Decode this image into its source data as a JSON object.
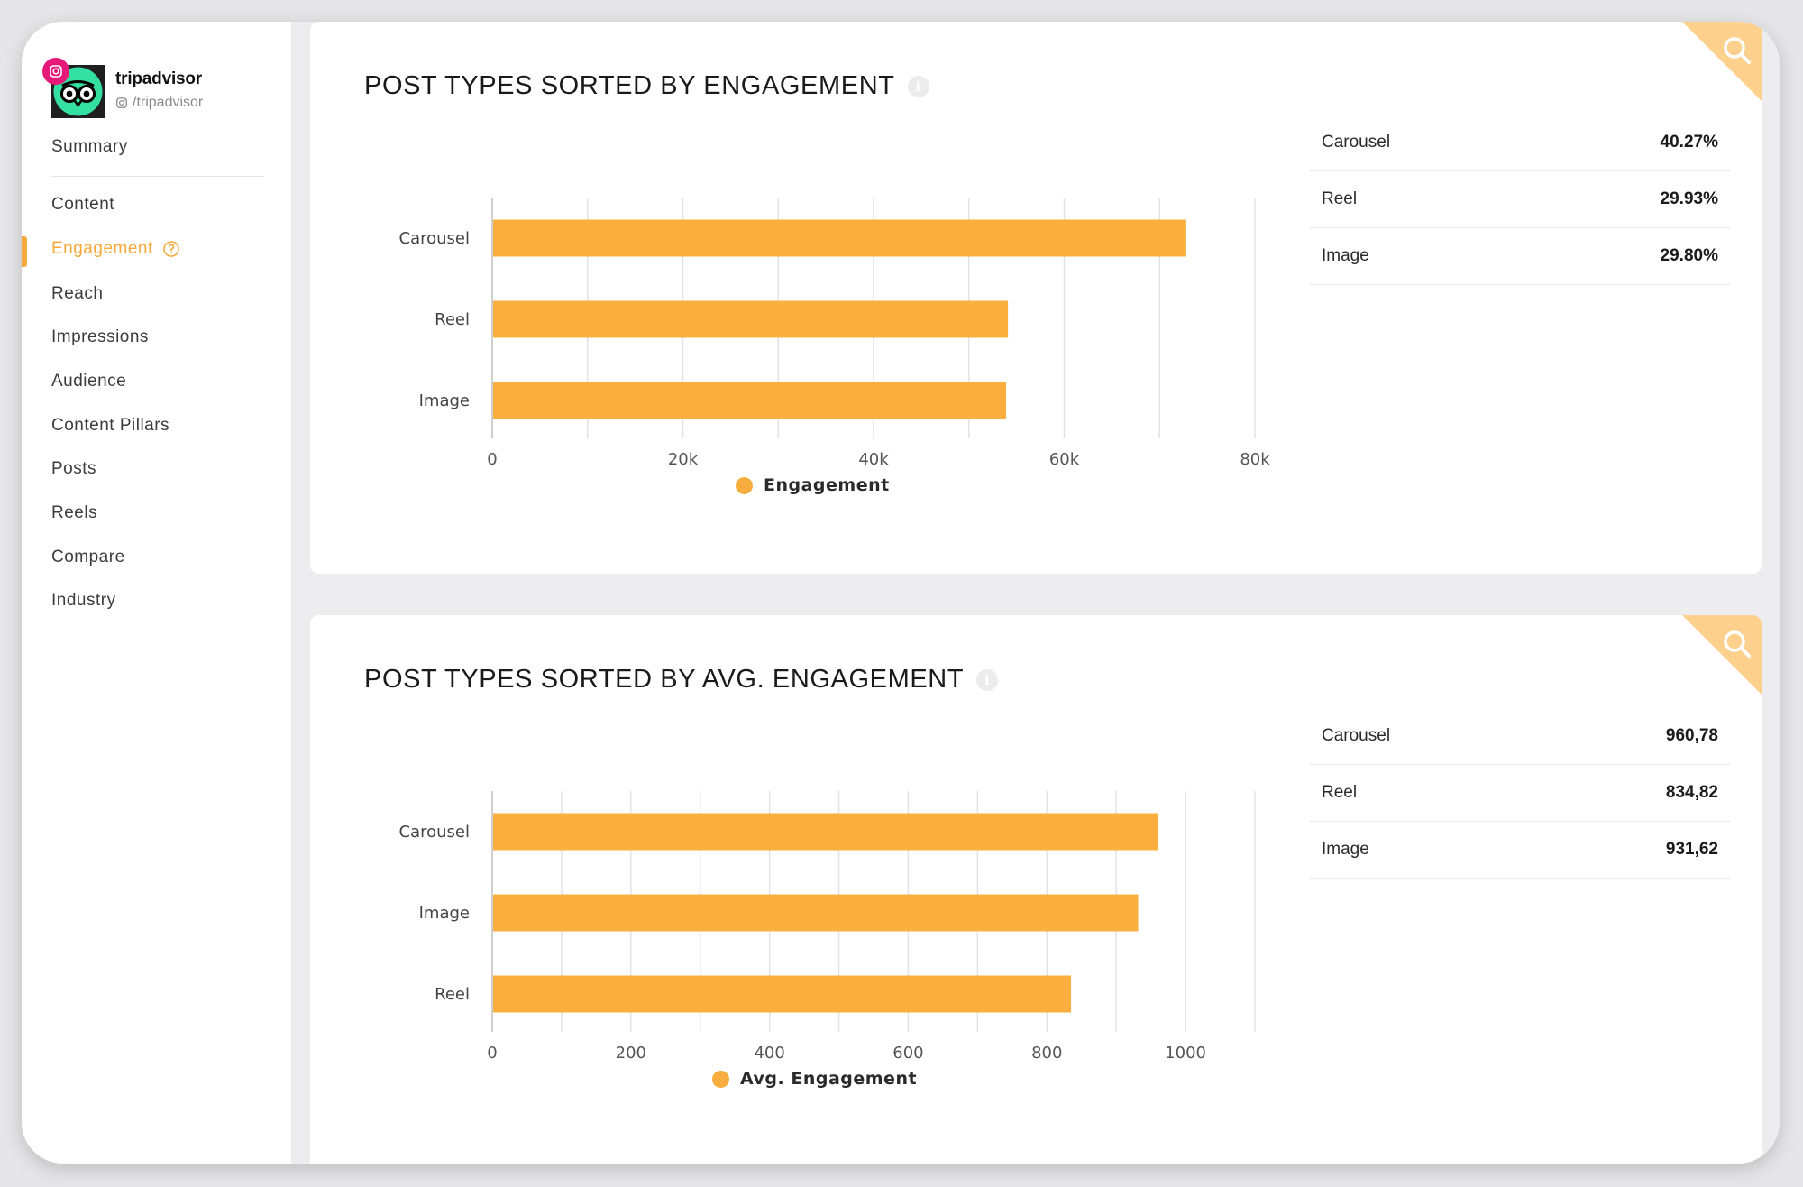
{
  "profile": {
    "name": "tripadvisor",
    "handle": "/tripadvisor"
  },
  "nav": {
    "items": [
      {
        "label": "Summary",
        "name": "nav-summary"
      },
      {
        "label": "Content",
        "name": "nav-content"
      },
      {
        "label": "Engagement",
        "name": "nav-engagement",
        "active": true
      },
      {
        "label": "Reach",
        "name": "nav-reach"
      },
      {
        "label": "Impressions",
        "name": "nav-impressions"
      },
      {
        "label": "Audience",
        "name": "nav-audience"
      },
      {
        "label": "Content Pillars",
        "name": "nav-content-pillars"
      },
      {
        "label": "Posts",
        "name": "nav-posts"
      },
      {
        "label": "Reels",
        "name": "nav-reels"
      },
      {
        "label": "Compare",
        "name": "nav-compare"
      },
      {
        "label": "Industry",
        "name": "nav-industry"
      }
    ]
  },
  "colors": {
    "accent": "#f7a93c",
    "bar": "#fbaf3f",
    "brand_green": "#34e0a1",
    "instagram": "#e6197a"
  },
  "cards": [
    {
      "title": "POST TYPES SORTED BY ENGAGEMENT",
      "stats": [
        {
          "label": "Carousel",
          "value": "40.27%"
        },
        {
          "label": "Reel",
          "value": "29.93%"
        },
        {
          "label": "Image",
          "value": "29.80%"
        }
      ]
    },
    {
      "title": "POST TYPES SORTED BY AVG. ENGAGEMENT",
      "stats": [
        {
          "label": "Carousel",
          "value": "960,78"
        },
        {
          "label": "Reel",
          "value": "834,82"
        },
        {
          "label": "Image",
          "value": "931,62"
        }
      ]
    }
  ],
  "chart_data": [
    {
      "type": "bar",
      "orientation": "horizontal",
      "categories": [
        "Carousel",
        "Reel",
        "Image"
      ],
      "series": [
        {
          "name": "Engagement",
          "values": [
            72800,
            54100,
            53900
          ]
        }
      ],
      "xlim": [
        0,
        80000
      ],
      "xticks": [
        0,
        20000,
        40000,
        60000,
        80000
      ],
      "xtick_labels": [
        "0",
        "20k",
        "40k",
        "60k",
        "80k"
      ],
      "grid_step": 10000,
      "grid": true,
      "legend": "bottom-center"
    },
    {
      "type": "bar",
      "orientation": "horizontal",
      "categories": [
        "Carousel",
        "Image",
        "Reel"
      ],
      "series": [
        {
          "name": "Avg. Engagement",
          "values": [
            960.78,
            931.62,
            834.82
          ]
        }
      ],
      "xlim": [
        0,
        1100
      ],
      "xticks": [
        0,
        200,
        400,
        600,
        800,
        1000
      ],
      "xtick_labels": [
        "0",
        "200",
        "400",
        "600",
        "800",
        "1000"
      ],
      "grid_step": 100,
      "grid": true,
      "legend": "bottom-center"
    }
  ]
}
